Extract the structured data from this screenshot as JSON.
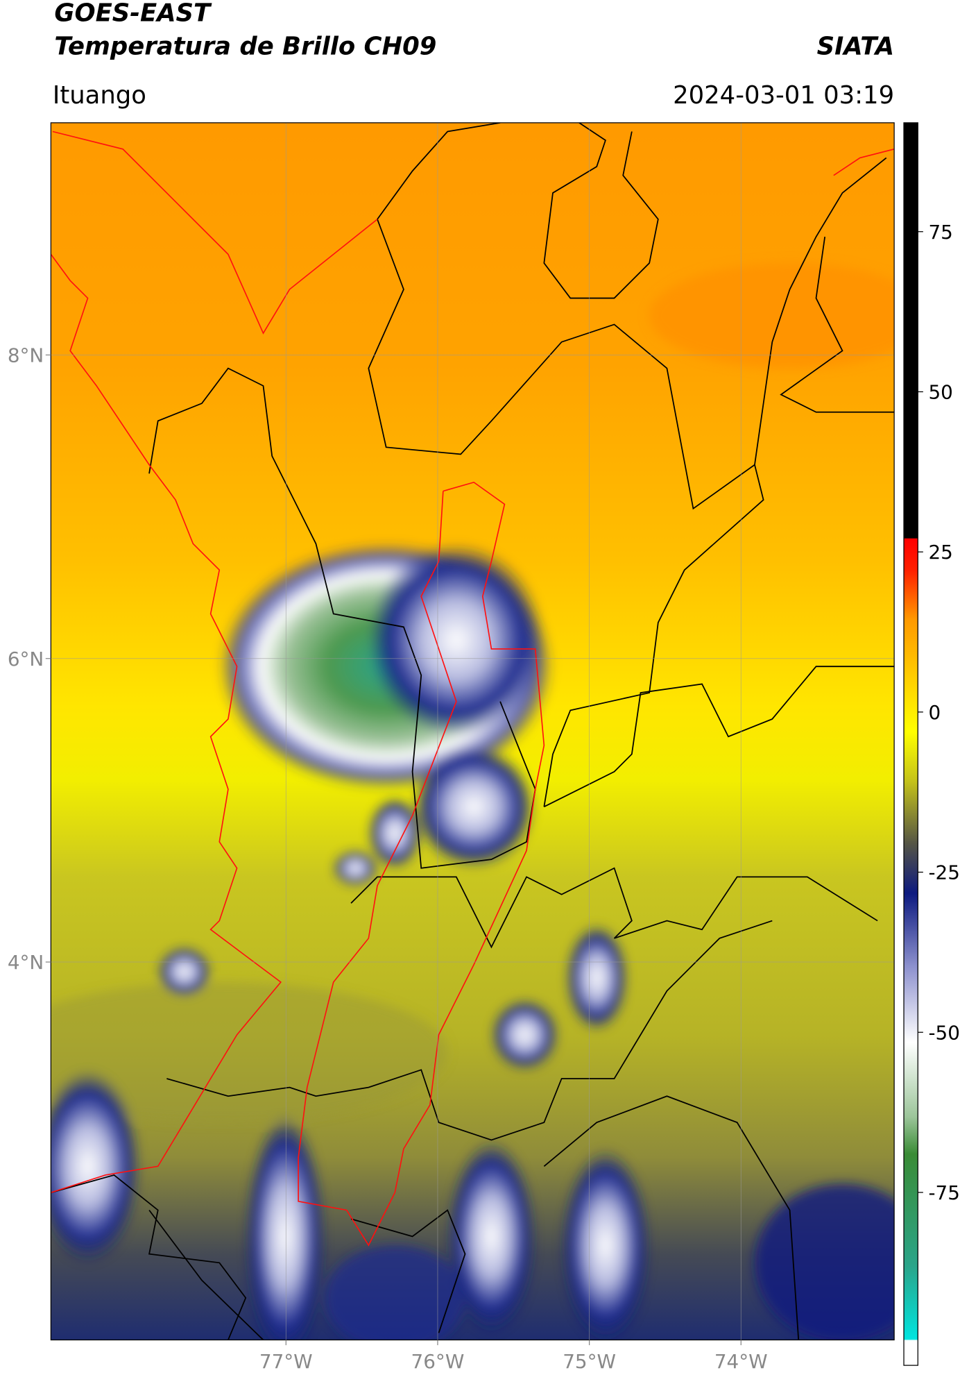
{
  "header": {
    "satellite": "GOES-EAST",
    "product": "Temperatura de Brillo CH09",
    "region": "Ituango",
    "source": "SIATA",
    "datetime": "2024-03-01 03:19"
  },
  "map": {
    "xlim": [
      -78.55,
      -72.99
    ],
    "ylim": [
      1.51,
      9.53
    ],
    "xticks": [
      {
        "value": -77,
        "label": "77°W"
      },
      {
        "value": -76,
        "label": "76°W"
      },
      {
        "value": -75,
        "label": "75°W"
      },
      {
        "value": -74,
        "label": "74°W"
      }
    ],
    "yticks": [
      {
        "value": 8,
        "label": "8°N"
      },
      {
        "value": 6,
        "label": "6°N"
      },
      {
        "value": 4,
        "label": "4°N"
      }
    ],
    "grid": true
  },
  "colorbar": {
    "lim": [
      -102,
      92
    ],
    "ticks": [
      -75,
      -50,
      -25,
      0,
      25,
      50,
      75
    ]
  }
}
